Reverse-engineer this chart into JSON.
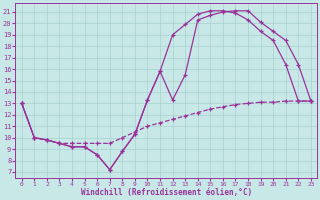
{
  "bg_color": "#c8e8e8",
  "grid_color": "#a8d0d0",
  "line_color": "#993399",
  "xlim": [
    -0.5,
    23.5
  ],
  "ylim": [
    6.5,
    21.8
  ],
  "xticks": [
    0,
    1,
    2,
    3,
    4,
    5,
    6,
    7,
    8,
    9,
    10,
    11,
    12,
    13,
    14,
    15,
    16,
    17,
    18,
    19,
    20,
    21,
    22,
    23
  ],
  "yticks": [
    7,
    8,
    9,
    10,
    11,
    12,
    13,
    14,
    15,
    16,
    17,
    18,
    19,
    20,
    21
  ],
  "xlabel": "Windchill (Refroidissement éolien,°C)",
  "line_dashed_x": [
    0,
    1,
    2,
    3,
    4,
    5,
    6,
    7,
    8,
    9,
    10,
    11,
    12,
    13,
    14,
    15,
    16,
    17,
    18,
    19,
    20,
    21,
    22,
    23
  ],
  "line_dashed_y": [
    13,
    10,
    9.8,
    9.5,
    9.5,
    9.5,
    9.5,
    9.5,
    10.0,
    10.5,
    11.0,
    11.3,
    11.6,
    11.9,
    12.2,
    12.5,
    12.7,
    12.9,
    13.0,
    13.1,
    13.1,
    13.2,
    13.2,
    13.2
  ],
  "line_sharp_x": [
    0,
    1,
    2,
    3,
    4,
    5,
    6,
    7,
    8,
    9,
    10,
    11,
    12,
    13,
    14,
    15,
    16,
    17,
    18,
    19,
    20,
    21,
    22,
    23
  ],
  "line_sharp_y": [
    13,
    10,
    9.8,
    9.5,
    9.2,
    9.2,
    8.5,
    7.2,
    8.8,
    10.3,
    13.3,
    15.8,
    13.3,
    15.5,
    20.3,
    20.7,
    21.0,
    21.1,
    21.1,
    20.1,
    19.3,
    18.5,
    16.4,
    13.2
  ],
  "line_smooth_x": [
    0,
    1,
    2,
    3,
    4,
    5,
    6,
    7,
    8,
    9,
    10,
    11,
    12,
    13,
    14,
    15,
    16,
    17,
    18,
    19,
    20,
    21,
    22,
    23
  ],
  "line_smooth_y": [
    13,
    10,
    9.8,
    9.5,
    9.2,
    9.2,
    8.5,
    7.2,
    8.8,
    10.3,
    13.3,
    15.8,
    19.0,
    19.9,
    20.8,
    21.1,
    21.1,
    20.9,
    20.3,
    19.3,
    18.5,
    16.4,
    13.2,
    13.2
  ]
}
